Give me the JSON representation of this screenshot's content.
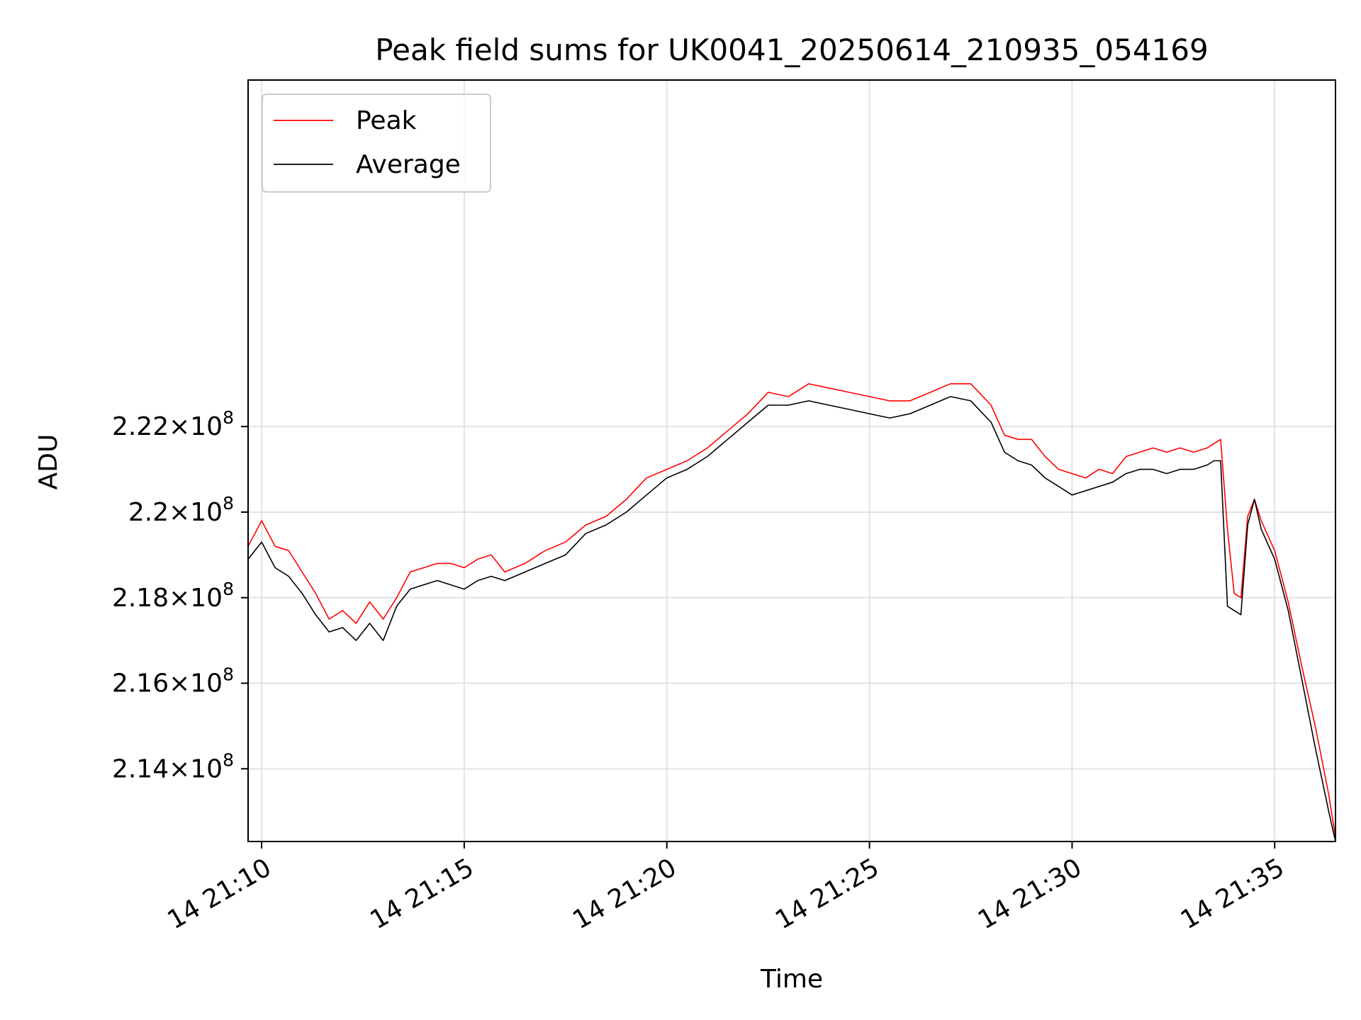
{
  "chart_data": {
    "type": "line",
    "title": "Peak field sums for UK0041_20250614_210935_054169",
    "xlabel": "Time",
    "ylabel": "ADU",
    "x_range": [
      "14 21:09:40",
      "14 21:36:30"
    ],
    "ylim": [
      212.3,
      230.1
    ],
    "y_unit_multiplier": "1e6",
    "grid": true,
    "legend_position": "top-left",
    "x_ticks": [
      {
        "time": "14 21:10",
        "label": "14 21:10"
      },
      {
        "time": "14 21:15",
        "label": "14 21:15"
      },
      {
        "time": "14 21:20",
        "label": "14 21:20"
      },
      {
        "time": "14 21:25",
        "label": "14 21:25"
      },
      {
        "time": "14 21:30",
        "label": "14 21:30"
      },
      {
        "time": "14 21:35",
        "label": "14 21:35"
      }
    ],
    "y_ticks": [
      {
        "value": 214,
        "mantissa": "2.14",
        "exponent": "8"
      },
      {
        "value": 216,
        "mantissa": "2.16",
        "exponent": "8"
      },
      {
        "value": 218,
        "mantissa": "2.18",
        "exponent": "8"
      },
      {
        "value": 220,
        "mantissa": "2.2",
        "exponent": "8"
      },
      {
        "value": 222,
        "mantissa": "2.22",
        "exponent": "8"
      }
    ],
    "times": [
      "14 21:09:40",
      "14 21:10:00",
      "14 21:10:20",
      "14 21:10:40",
      "14 21:11:00",
      "14 21:11:20",
      "14 21:11:40",
      "14 21:12:00",
      "14 21:12:20",
      "14 21:12:40",
      "14 21:13:00",
      "14 21:13:20",
      "14 21:13:40",
      "14 21:14:00",
      "14 21:14:20",
      "14 21:14:40",
      "14 21:15:00",
      "14 21:15:20",
      "14 21:15:40",
      "14 21:16:00",
      "14 21:16:30",
      "14 21:17:00",
      "14 21:17:30",
      "14 21:18:00",
      "14 21:18:30",
      "14 21:19:00",
      "14 21:19:30",
      "14 21:20:00",
      "14 21:20:30",
      "14 21:21:00",
      "14 21:21:30",
      "14 21:22:00",
      "14 21:22:30",
      "14 21:23:00",
      "14 21:23:30",
      "14 21:24:00",
      "14 21:24:30",
      "14 21:25:00",
      "14 21:25:30",
      "14 21:26:00",
      "14 21:26:30",
      "14 21:27:00",
      "14 21:27:30",
      "14 21:28:00",
      "14 21:28:20",
      "14 21:28:40",
      "14 21:29:00",
      "14 21:29:20",
      "14 21:29:40",
      "14 21:30:00",
      "14 21:30:20",
      "14 21:30:40",
      "14 21:31:00",
      "14 21:31:20",
      "14 21:31:40",
      "14 21:32:00",
      "14 21:32:20",
      "14 21:32:40",
      "14 21:33:00",
      "14 21:33:20",
      "14 21:33:30",
      "14 21:33:40",
      "14 21:33:50",
      "14 21:34:00",
      "14 21:34:10",
      "14 21:34:20",
      "14 21:34:30",
      "14 21:34:40",
      "14 21:35:00",
      "14 21:35:20",
      "14 21:35:40",
      "14 21:36:00",
      "14 21:36:20",
      "14 21:36:30"
    ],
    "series": [
      {
        "name": "Peak",
        "color": "#ff0000",
        "values": [
          219.2,
          219.8,
          219.2,
          219.1,
          218.6,
          218.1,
          217.5,
          217.7,
          217.4,
          217.9,
          217.5,
          218.0,
          218.6,
          218.7,
          218.8,
          218.8,
          218.7,
          218.9,
          219.0,
          218.6,
          218.8,
          219.1,
          219.3,
          219.7,
          219.9,
          220.3,
          220.8,
          221.0,
          221.2,
          221.5,
          221.9,
          222.3,
          222.8,
          222.7,
          223.0,
          222.9,
          222.8,
          222.7,
          222.6,
          222.6,
          222.8,
          223.0,
          223.0,
          222.5,
          221.8,
          221.7,
          221.7,
          221.3,
          221.0,
          220.9,
          220.8,
          221.0,
          220.9,
          221.3,
          221.4,
          221.5,
          221.4,
          221.5,
          221.4,
          221.5,
          221.6,
          221.7,
          219.6,
          218.1,
          218.0,
          219.9,
          220.3,
          219.8,
          219.1,
          217.9,
          216.4,
          215.0,
          213.4,
          212.4
        ]
      },
      {
        "name": "Average",
        "color": "#000000",
        "values": [
          218.9,
          219.3,
          218.7,
          218.5,
          218.1,
          217.6,
          217.2,
          217.3,
          217.0,
          217.4,
          217.0,
          217.8,
          218.2,
          218.3,
          218.4,
          218.3,
          218.2,
          218.4,
          218.5,
          218.4,
          218.6,
          218.8,
          219.0,
          219.5,
          219.7,
          220.0,
          220.4,
          220.8,
          221.0,
          221.3,
          221.7,
          222.1,
          222.5,
          222.5,
          222.6,
          222.5,
          222.4,
          222.3,
          222.2,
          222.3,
          222.5,
          222.7,
          222.6,
          222.1,
          221.4,
          221.2,
          221.1,
          220.8,
          220.6,
          220.4,
          220.5,
          220.6,
          220.7,
          220.9,
          221.0,
          221.0,
          220.9,
          221.0,
          221.0,
          221.1,
          221.2,
          221.2,
          217.8,
          217.7,
          217.6,
          219.7,
          220.3,
          219.6,
          218.9,
          217.7,
          216.1,
          214.5,
          213.0,
          212.3
        ]
      }
    ]
  }
}
